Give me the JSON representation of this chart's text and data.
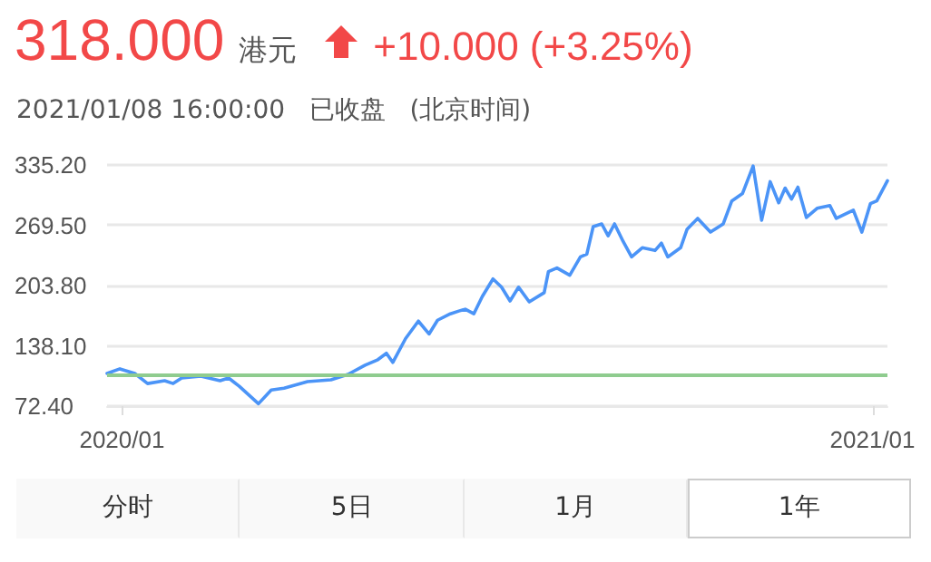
{
  "chart_data": {
    "type": "line",
    "title": "318.000",
    "subtitle": "2021/01/08 16:00:00   已收盘   (北京时间)",
    "annotations": [
      "港元",
      "+10.000 (+3.25%)",
      "分时",
      "5日",
      "1月",
      "1年"
    ],
    "x": [
      "2020-01-08",
      "2020-01-14",
      "2020-01-21",
      "2020-01-27",
      "2020-02-04",
      "2020-02-08",
      "2020-02-12",
      "2020-02-21",
      "2020-03-01",
      "2020-03-05",
      "2020-03-10",
      "2020-03-19",
      "2020-03-25",
      "2020-03-31",
      "2020-04-11",
      "2020-04-22",
      "2020-04-30",
      "2020-05-08",
      "2020-05-14",
      "2020-05-18",
      "2020-05-21",
      "2020-05-27",
      "2020-06-02",
      "2020-06-07",
      "2020-06-11",
      "2020-06-17",
      "2020-06-21",
      "2020-06-24",
      "2020-06-28",
      "2020-07-02",
      "2020-07-07",
      "2020-07-11",
      "2020-07-15",
      "2020-07-19",
      "2020-07-24",
      "2020-07-31",
      "2020-08-02",
      "2020-08-06",
      "2020-08-12",
      "2020-08-17",
      "2020-08-20",
      "2020-08-23",
      "2020-08-27",
      "2020-08-30",
      "2020-09-02",
      "2020-09-06",
      "2020-09-10",
      "2020-09-15",
      "2020-09-21",
      "2020-09-24",
      "2020-09-27",
      "2020-10-03",
      "2020-10-06",
      "2020-10-11",
      "2020-10-17",
      "2020-10-23",
      "2020-10-27",
      "2020-11-01",
      "2020-11-06",
      "2020-11-10",
      "2020-11-14",
      "2020-11-18",
      "2020-11-21",
      "2020-11-24",
      "2020-11-27",
      "2020-12-01",
      "2020-12-06",
      "2020-12-12",
      "2020-12-15",
      "2020-12-23",
      "2020-12-27",
      "2020-12-31",
      "2021-01-03",
      "2021-01-08"
    ],
    "series": [
      {
        "color": "#4b94f7",
        "values": [
          108,
          113,
          108,
          97,
          100,
          97,
          103,
          105,
          100,
          103,
          94,
          75,
          90,
          92,
          99,
          101,
          107,
          117,
          123,
          130,
          120,
          146,
          165,
          151,
          166,
          173,
          176,
          178,
          173,
          192,
          211,
          202,
          187,
          202,
          186,
          196,
          219,
          223,
          215,
          235,
          238,
          268,
          271,
          258,
          271,
          252,
          235,
          245,
          242,
          250,
          235,
          245,
          265,
          277,
          262,
          271,
          296,
          304,
          334,
          275,
          317,
          294,
          310,
          298,
          311,
          278,
          288,
          291,
          277,
          286,
          262,
          293,
          296,
          318
        ]
      }
    ],
    "xlim": [
      "2020-01-08",
      "2021-01-08"
    ],
    "xticks": [
      {
        "value": "2020-01-15",
        "label": "2020/01"
      },
      {
        "value": "2021-01-01",
        "label": "2021/01"
      }
    ],
    "ylim": [
      72.4,
      335.2
    ],
    "yticks": [
      {
        "value": 72.4,
        "label": "72.40"
      },
      {
        "value": 138.1,
        "label": "138.10"
      },
      {
        "value": 203.8,
        "label": "203.80"
      },
      {
        "value": 269.5,
        "label": "269.50"
      },
      {
        "value": 335.2,
        "label": "335.20"
      }
    ],
    "ref_lines": [
      {
        "axis": "y",
        "value": 106,
        "color": "#8fcc8f"
      }
    ],
    "grid": "y",
    "marker": "none",
    "line_style": "solid"
  }
}
